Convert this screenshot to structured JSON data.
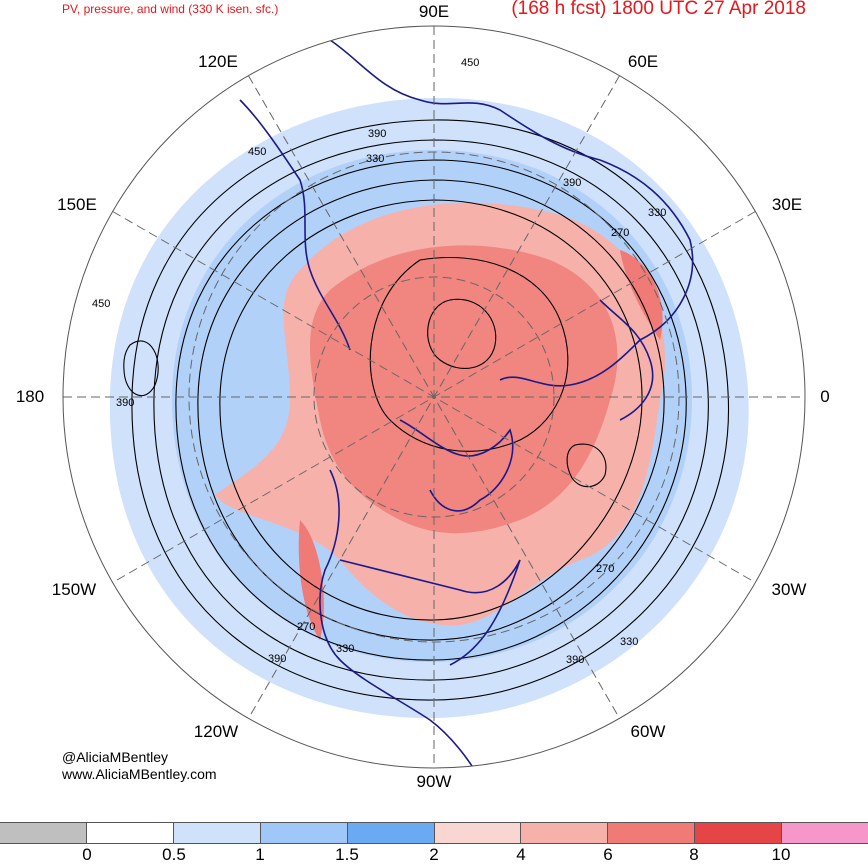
{
  "header": {
    "left_title": "PV, pressure, and wind (330 K isen. sfc.)",
    "right_title": "(168 h fcst) 1800 UTC 27 Apr 2018"
  },
  "longitude_labels": {
    "top": "90E",
    "upper_left": "120E",
    "upper_right": "60E",
    "left_high": "150E",
    "right_high": "30E",
    "left": "180",
    "right": "0",
    "left_low": "150W",
    "right_low": "30W",
    "lower_left": "120W",
    "lower_right": "60W",
    "bottom": "90W"
  },
  "contour_labels": [
    "450",
    "390",
    "450",
    "330",
    "390",
    "330",
    "270",
    "450",
    "390",
    "270",
    "270",
    "330",
    "390",
    "330",
    "390"
  ],
  "credits": {
    "handle": "@AliciaMBentley",
    "website": "www.AliciaMBentley.com"
  },
  "colorbar": {
    "colors": [
      "#bfbfbf",
      "#ffffff",
      "#cfe1fb",
      "#9fc7f8",
      "#6aaaf2",
      "#f9d6d2",
      "#f6b1ab",
      "#f07a76",
      "#e54547",
      "#f597c8"
    ],
    "ticks": [
      "0",
      "0.5",
      "1",
      "1.5",
      "2",
      "4",
      "6",
      "8",
      "10"
    ]
  }
}
